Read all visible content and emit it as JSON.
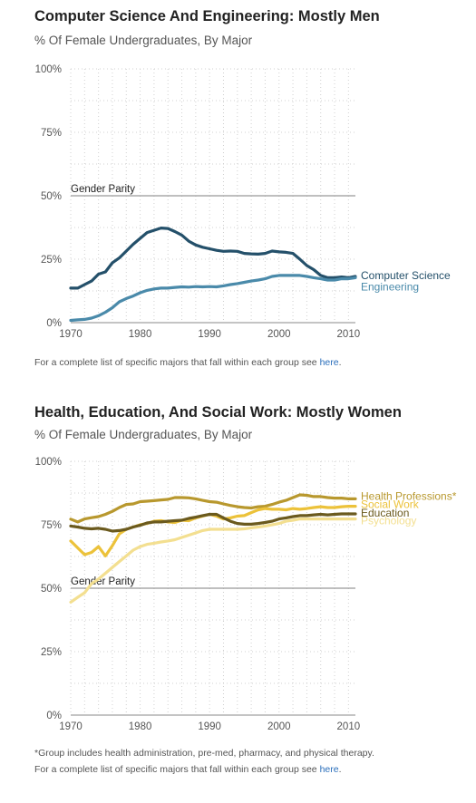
{
  "charts": [
    {
      "title": "Computer Science And Engineering: Mostly Men",
      "subtitle": "% Of Female Undergraduates, By Major",
      "notes": [
        {
          "text": "For a complete list of specific majors that fall within each group see ",
          "link": "here",
          "end": "."
        }
      ]
    },
    {
      "title": "Health, Education, And Social Work: Mostly Women",
      "subtitle": "% Of Female Undergraduates, By Major",
      "notes": [
        {
          "text": "*Group includes health administration, pre-med, pharmacy, and physical therapy.",
          "link": "",
          "end": ""
        },
        {
          "text": "For a complete list of specific majors that fall within each group see ",
          "link": "here",
          "end": "."
        }
      ]
    }
  ],
  "chart_data": [
    {
      "type": "line",
      "title": "Computer Science And Engineering: Mostly Men",
      "subtitle": "% Of Female Undergraduates, By Major",
      "xlim": [
        1970,
        2011
      ],
      "ylim": [
        0,
        100
      ],
      "xticks": [
        "1970",
        "1980",
        "1990",
        "2000",
        "2010"
      ],
      "yticks": [
        "0%",
        "25%",
        "50%",
        "75%",
        "100%"
      ],
      "grid": "dotted",
      "reference_line": {
        "label": "Gender Parity",
        "value": 50
      },
      "series": [
        {
          "name": "Computer Science",
          "color": "#24506a",
          "x": [
            1970,
            1971,
            1972,
            1973,
            1974,
            1975,
            1976,
            1977,
            1978,
            1979,
            1980,
            1981,
            1982,
            1983,
            1984,
            1985,
            1986,
            1987,
            1988,
            1989,
            1990,
            1991,
            1992,
            1993,
            1994,
            1995,
            1996,
            1997,
            1998,
            1999,
            2000,
            2001,
            2002,
            2003,
            2004,
            2005,
            2006,
            2007,
            2008,
            2009,
            2010,
            2011
          ],
          "y": [
            13.6,
            13.6,
            15.0,
            16.4,
            19.1,
            20.0,
            23.6,
            25.5,
            28.2,
            30.9,
            33.2,
            35.5,
            36.4,
            37.3,
            37.1,
            35.9,
            34.5,
            32.1,
            30.6,
            29.7,
            29.1,
            28.5,
            28.1,
            28.2,
            28.1,
            27.3,
            27.1,
            27.0,
            27.3,
            28.2,
            27.9,
            27.7,
            27.3,
            25.0,
            22.5,
            20.9,
            18.6,
            17.7,
            17.7,
            18.0,
            17.7,
            18.2
          ]
        },
        {
          "name": "Engineering",
          "color": "#4a8aaa",
          "x": [
            1970,
            1971,
            1972,
            1973,
            1974,
            1975,
            1976,
            1977,
            1978,
            1979,
            1980,
            1981,
            1982,
            1983,
            1984,
            1985,
            1986,
            1987,
            1988,
            1989,
            1990,
            1991,
            1992,
            1993,
            1994,
            1995,
            1996,
            1997,
            1998,
            1999,
            2000,
            2001,
            2002,
            2003,
            2004,
            2005,
            2006,
            2007,
            2008,
            2009,
            2010,
            2011
          ],
          "y": [
            0.9,
            1.1,
            1.3,
            1.8,
            2.7,
            4.1,
            5.9,
            8.2,
            9.5,
            10.5,
            11.8,
            12.7,
            13.3,
            13.6,
            13.6,
            13.9,
            14.1,
            14.0,
            14.2,
            14.1,
            14.2,
            14.1,
            14.5,
            15.0,
            15.4,
            15.9,
            16.4,
            16.8,
            17.3,
            18.2,
            18.6,
            18.6,
            18.6,
            18.6,
            18.2,
            17.7,
            17.3,
            16.8,
            16.8,
            17.3,
            17.3,
            17.7
          ]
        }
      ],
      "footnote": "For a complete list of specific majors that fall within each group see here."
    },
    {
      "type": "line",
      "title": "Health, Education, And Social Work: Mostly Women",
      "subtitle": "% Of Female Undergraduates, By Major",
      "xlim": [
        1970,
        2011
      ],
      "ylim": [
        0,
        100
      ],
      "xticks": [
        "1970",
        "1980",
        "1990",
        "2000",
        "2010"
      ],
      "yticks": [
        "0%",
        "25%",
        "50%",
        "75%",
        "100%"
      ],
      "grid": "dotted",
      "reference_line": {
        "label": "Gender Parity",
        "value": 50
      },
      "series": [
        {
          "name": "Health Professions*",
          "color": "#b8982e",
          "x": [
            1970,
            1971,
            1972,
            1973,
            1974,
            1975,
            1976,
            1977,
            1978,
            1979,
            1980,
            1981,
            1982,
            1983,
            1984,
            1985,
            1986,
            1987,
            1988,
            1989,
            1990,
            1991,
            1992,
            1993,
            1994,
            1995,
            1996,
            1997,
            1998,
            1999,
            2000,
            2001,
            2002,
            2003,
            2004,
            2005,
            2006,
            2007,
            2008,
            2009,
            2010,
            2011
          ],
          "y": [
            77.2,
            76.1,
            77.3,
            77.8,
            78.2,
            79.1,
            80.3,
            81.8,
            83.0,
            83.2,
            84.1,
            84.3,
            84.5,
            84.8,
            85.0,
            85.7,
            85.7,
            85.6,
            85.2,
            84.6,
            84.1,
            83.9,
            83.2,
            82.6,
            82.1,
            81.8,
            81.6,
            82.1,
            82.3,
            83.0,
            83.9,
            84.6,
            85.7,
            86.8,
            86.6,
            86.1,
            86.1,
            85.7,
            85.5,
            85.5,
            85.2,
            85.2
          ]
        },
        {
          "name": "Social Work",
          "color": "#ecc23a",
          "x": [
            1970,
            1971,
            1972,
            1973,
            1974,
            1975,
            1976,
            1977,
            1978,
            1979,
            1980,
            1981,
            1982,
            1983,
            1984,
            1985,
            1986,
            1987,
            1988,
            1989,
            1990,
            1991,
            1992,
            1993,
            1994,
            1995,
            1996,
            1997,
            1998,
            1999,
            2000,
            2001,
            2002,
            2003,
            2004,
            2005,
            2006,
            2007,
            2008,
            2009,
            2010,
            2011
          ],
          "y": [
            68.6,
            65.9,
            63.2,
            64.1,
            66.4,
            62.7,
            66.8,
            71.4,
            73.2,
            74.1,
            75.0,
            75.5,
            76.4,
            76.6,
            76.1,
            75.9,
            76.8,
            76.6,
            77.7,
            78.4,
            79.1,
            78.4,
            77.3,
            77.7,
            78.4,
            78.6,
            79.8,
            80.9,
            81.4,
            81.1,
            81.1,
            80.9,
            81.4,
            81.1,
            81.4,
            81.8,
            82.1,
            81.8,
            81.8,
            82.1,
            82.3,
            82.3
          ]
        },
        {
          "name": "Education",
          "color": "#6b5a1e",
          "x": [
            1970,
            1971,
            1972,
            1973,
            1974,
            1975,
            1976,
            1977,
            1978,
            1979,
            1980,
            1981,
            1982,
            1983,
            1984,
            1985,
            1986,
            1987,
            1988,
            1989,
            1990,
            1991,
            1992,
            1993,
            1994,
            1995,
            1996,
            1997,
            1998,
            1999,
            2000,
            2001,
            2002,
            2003,
            2004,
            2005,
            2006,
            2007,
            2008,
            2009,
            2010,
            2011
          ],
          "y": [
            74.5,
            74.1,
            73.6,
            73.4,
            73.6,
            73.2,
            72.5,
            72.7,
            73.2,
            74.1,
            74.8,
            75.7,
            76.1,
            76.1,
            76.4,
            76.6,
            76.8,
            77.5,
            78.0,
            78.6,
            79.1,
            79.1,
            77.7,
            76.4,
            75.5,
            75.2,
            75.2,
            75.5,
            75.9,
            76.4,
            77.3,
            77.7,
            78.2,
            78.6,
            78.6,
            78.9,
            79.1,
            78.9,
            79.1,
            79.3,
            79.3,
            79.3
          ]
        },
        {
          "name": "Psychology",
          "color": "#f3df90",
          "x": [
            1970,
            1971,
            1972,
            1973,
            1974,
            1975,
            1976,
            1977,
            1978,
            1979,
            1980,
            1981,
            1982,
            1983,
            1984,
            1985,
            1986,
            1987,
            1988,
            1989,
            1990,
            1991,
            1992,
            1993,
            1994,
            1995,
            1996,
            1997,
            1998,
            1999,
            2000,
            2001,
            2002,
            2003,
            2004,
            2005,
            2006,
            2007,
            2008,
            2009,
            2010,
            2011
          ],
          "y": [
            44.5,
            46.4,
            48.2,
            51.8,
            53.6,
            55.9,
            58.2,
            60.5,
            62.7,
            65.0,
            66.4,
            67.3,
            67.7,
            68.2,
            68.6,
            69.1,
            70.0,
            70.9,
            71.8,
            72.7,
            73.2,
            73.2,
            73.2,
            73.2,
            73.2,
            73.4,
            73.8,
            74.1,
            74.5,
            75.0,
            75.5,
            76.4,
            76.8,
            77.3,
            77.3,
            77.3,
            77.3,
            77.3,
            77.3,
            77.3,
            77.3,
            77.3
          ]
        }
      ],
      "footnote": "*Group includes health administration, pre-med, pharmacy, and physical therapy."
    }
  ]
}
